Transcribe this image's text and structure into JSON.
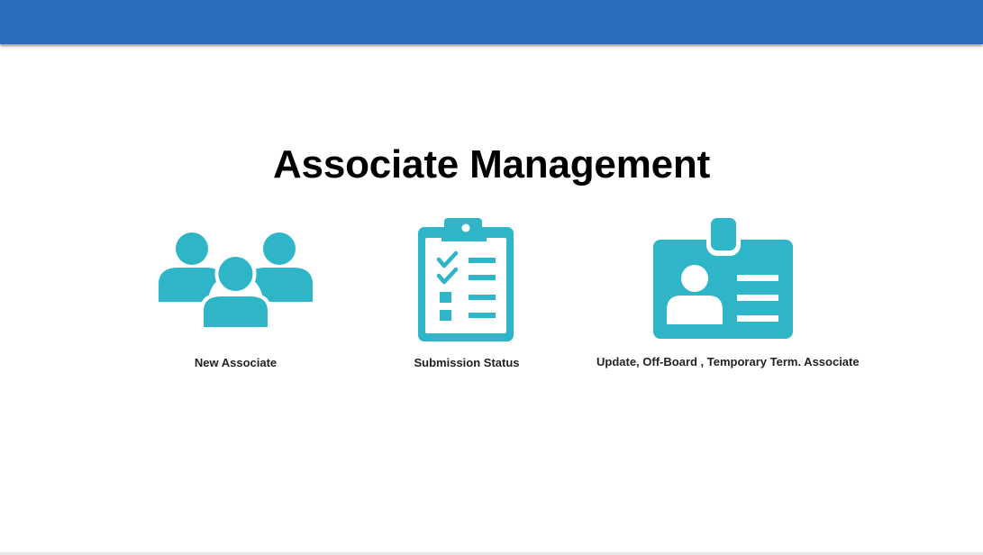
{
  "header": {
    "bar_color": "#2a6cbd"
  },
  "page": {
    "title": "Associate Management"
  },
  "tiles": [
    {
      "id": "new-associate",
      "label": "New Associate",
      "icon": "users-group-icon"
    },
    {
      "id": "submission-status",
      "label": "Submission Status",
      "icon": "clipboard-checklist-icon"
    },
    {
      "id": "update-associate",
      "label": "Update, Off-Board , Temporary Term. Associate",
      "icon": "id-badge-icon"
    }
  ],
  "colors": {
    "icon": "#2eb5c8",
    "title": "#000000"
  }
}
